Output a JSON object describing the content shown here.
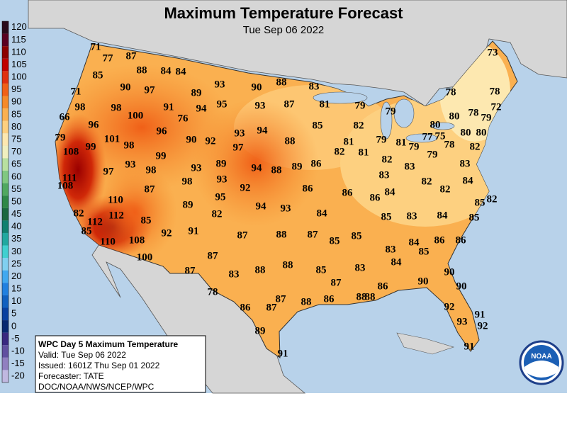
{
  "title": "Maximum Temperature Forecast",
  "subtitle": "Tue Sep 06 2022",
  "colorbar": {
    "values": [
      120,
      115,
      110,
      105,
      100,
      95,
      90,
      85,
      80,
      75,
      70,
      65,
      60,
      55,
      50,
      45,
      40,
      35,
      30,
      25,
      20,
      15,
      10,
      5,
      0,
      -5,
      -10,
      -15,
      -20
    ],
    "colors": [
      "#2a0a1a",
      "#5a0020",
      "#8c0000",
      "#c00000",
      "#e03010",
      "#f06018",
      "#f58a2a",
      "#fab050",
      "#fdd080",
      "#fde8b0",
      "#f0f0c0",
      "#b8e0a0",
      "#80c880",
      "#50a860",
      "#2e8848",
      "#1a6840",
      "#108070",
      "#20a8a0",
      "#40d0d0",
      "#80d0f0",
      "#40a8f0",
      "#2080e0",
      "#1060c0",
      "#0840a0",
      "#082870",
      "#382880",
      "#6050a0",
      "#9080c0",
      "#c0b8e0"
    ]
  },
  "temperature_labels": [
    71,
    77,
    87,
    85,
    88,
    84,
    84,
    90,
    97,
    89,
    93,
    90,
    88,
    83,
    71,
    98,
    98,
    100,
    91,
    94,
    95,
    93,
    87,
    81,
    79,
    66,
    96,
    76,
    96,
    93,
    94,
    88,
    85,
    82,
    79,
    80,
    80,
    78,
    79,
    72,
    78,
    78,
    73,
    79,
    108,
    99,
    101,
    98,
    90,
    92,
    97,
    89,
    79,
    81,
    79,
    77,
    75,
    78,
    80,
    80,
    82,
    79,
    81,
    82,
    81,
    82,
    83,
    93,
    99,
    98,
    97,
    93,
    94,
    88,
    89,
    86,
    83,
    83,
    111,
    108,
    98,
    93,
    92,
    87,
    84,
    82,
    82,
    86,
    86,
    86,
    84,
    82,
    110,
    95,
    89,
    94,
    93,
    84,
    82,
    82,
    112,
    112,
    85,
    85,
    83,
    84,
    85,
    85,
    85,
    110,
    108,
    92,
    91,
    87,
    88,
    87,
    85,
    85,
    84,
    85,
    86,
    86,
    83,
    100,
    87,
    88,
    88,
    83,
    87,
    85,
    83,
    84,
    90,
    87,
    90,
    90,
    86,
    88,
    88,
    86,
    88,
    87,
    87,
    86,
    78,
    92,
    91,
    93,
    92,
    89,
    91,
    91
  ],
  "info_box": {
    "title": "WPC Day 5 Maximum Temperature",
    "lines": [
      "Valid: Tue Sep 06 2022",
      "Issued: 1601Z Thu Sep 01 2022",
      "Forecaster: TATE",
      "DOC/NOAA/NWS/NCEP/WPC"
    ]
  },
  "logo": {
    "text": "NOAA"
  }
}
